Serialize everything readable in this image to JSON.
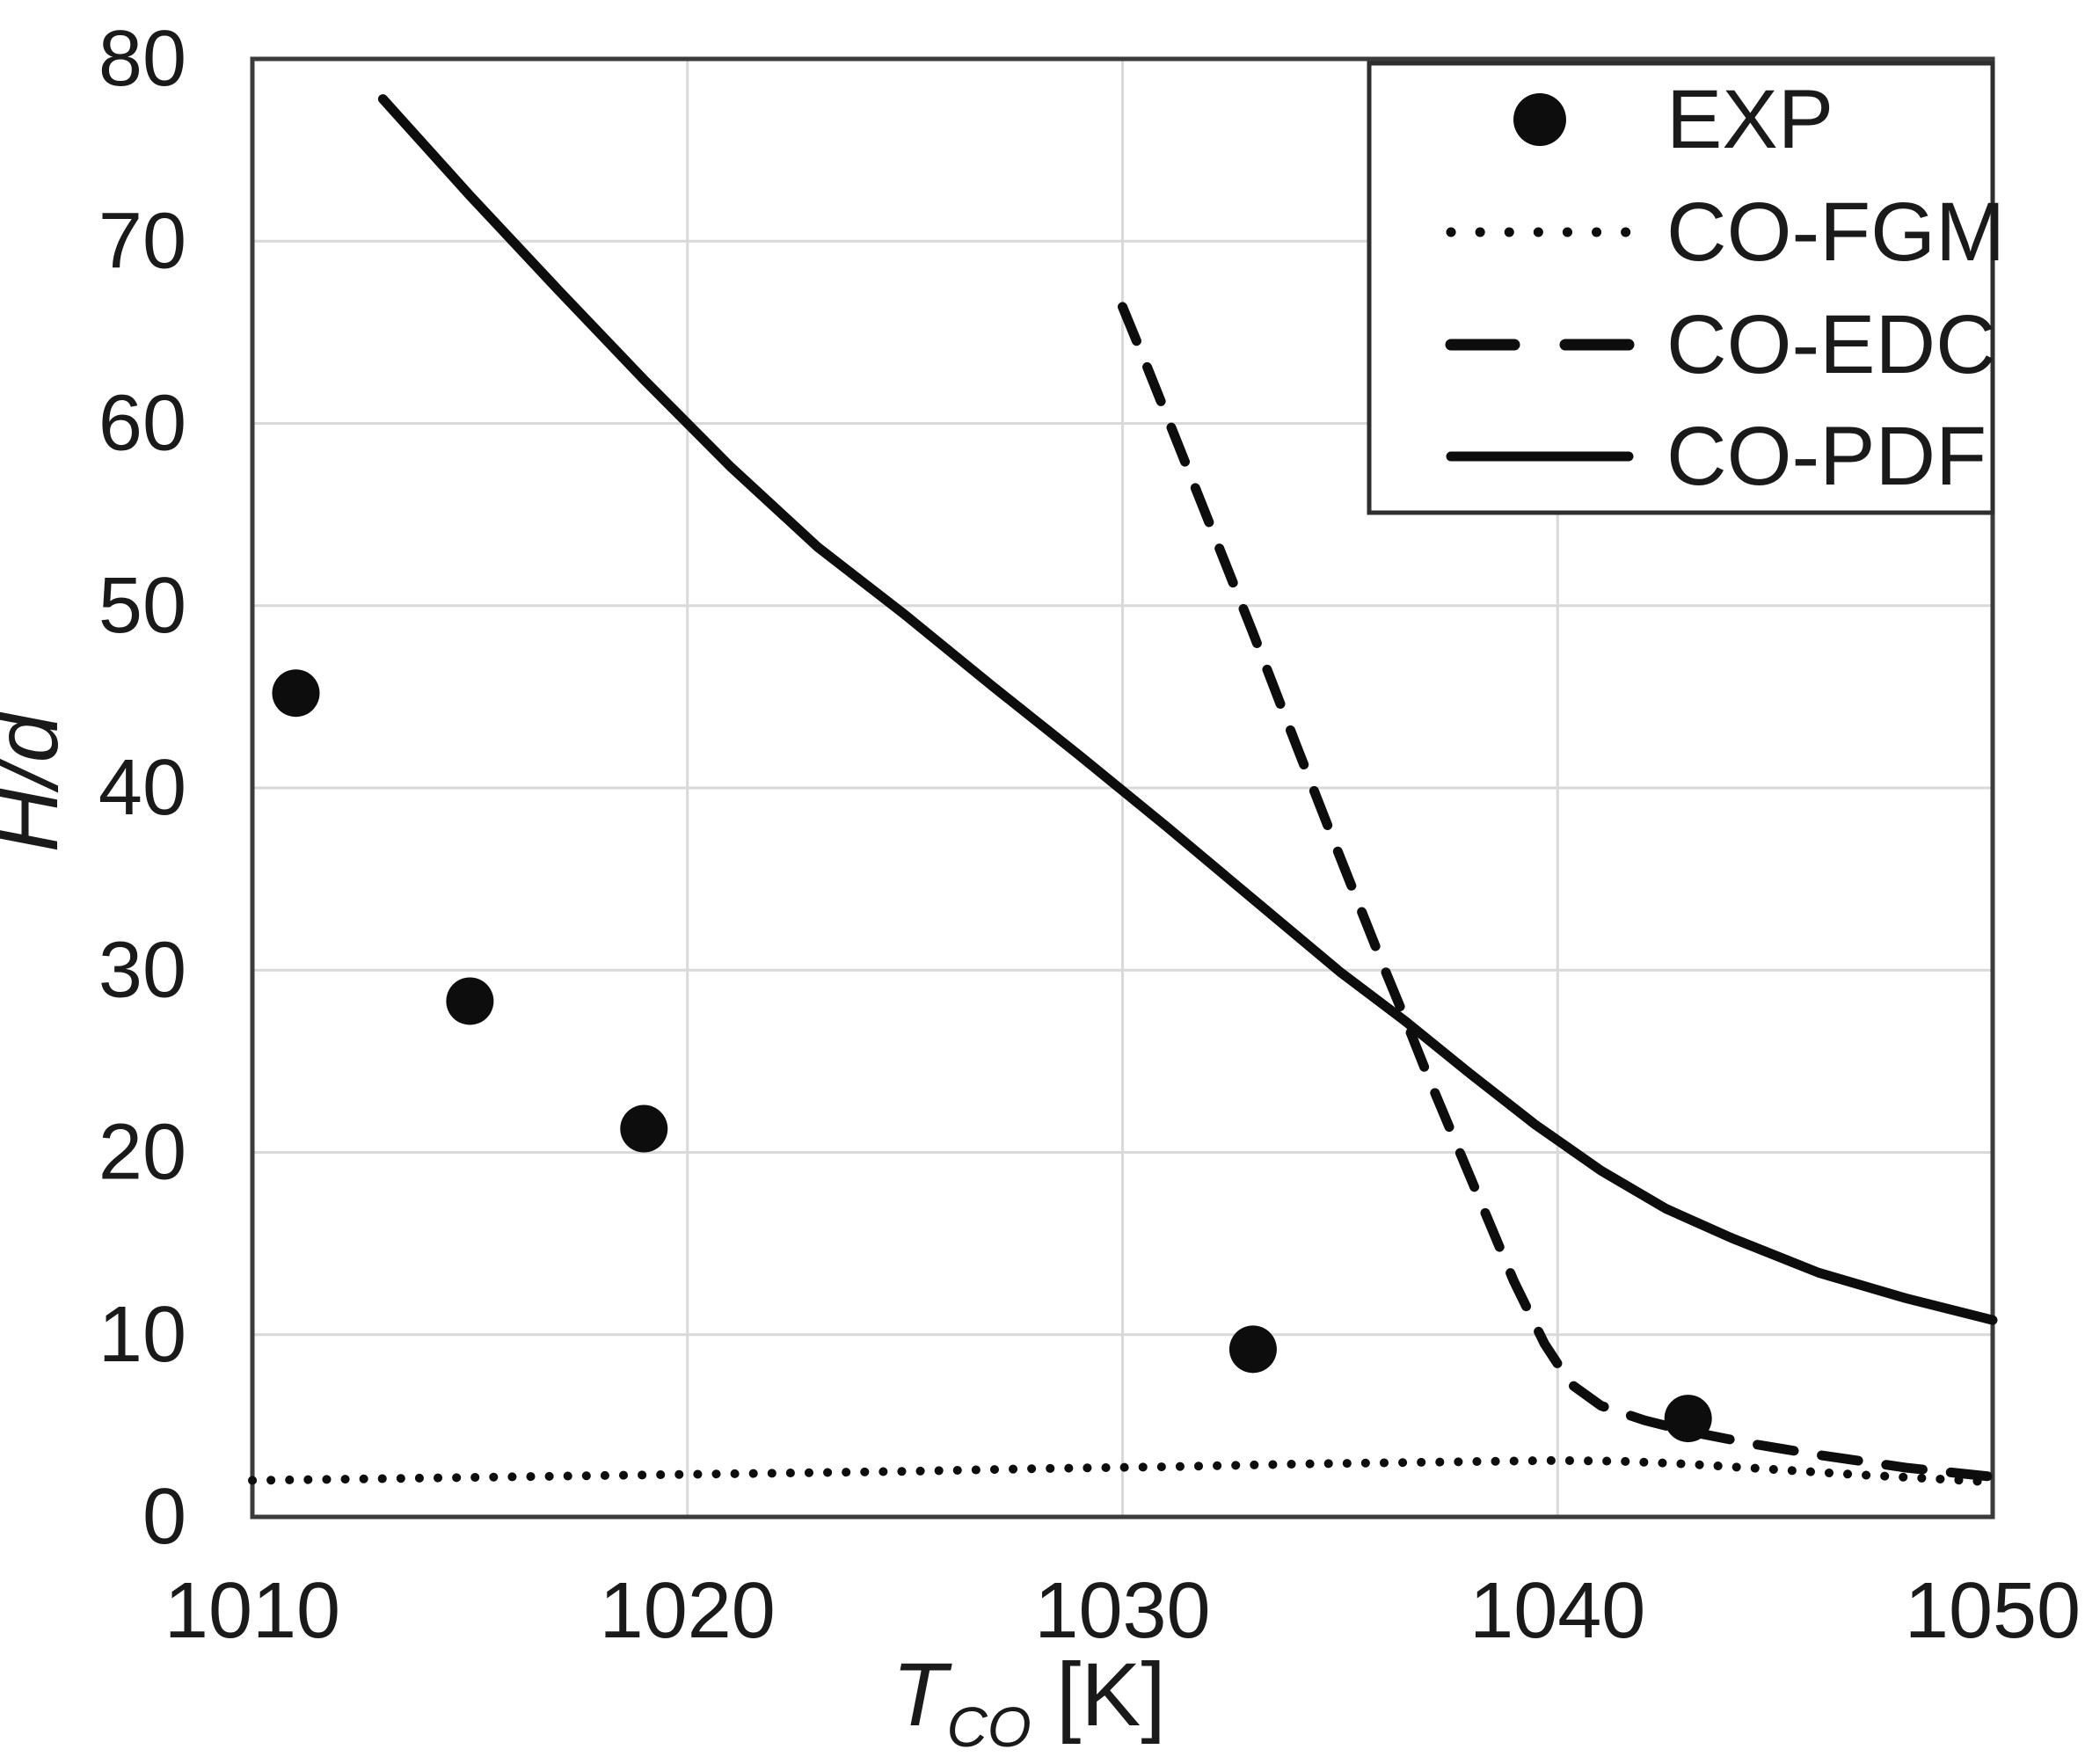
{
  "chart_data": {
    "type": "scatter",
    "title": "",
    "xlabel": {
      "symbol": "T",
      "subscript": "CO",
      "unit": " [K]"
    },
    "ylabel": "H/d",
    "xlim": [
      1010,
      1050
    ],
    "ylim": [
      0,
      80
    ],
    "x_ticks": [
      1010,
      1020,
      1030,
      1040,
      1050
    ],
    "y_ticks": [
      0,
      10,
      20,
      30,
      40,
      50,
      60,
      70,
      80
    ],
    "grid": true,
    "legend_position": "top-right",
    "series": [
      {
        "name": "EXP",
        "type": "scatter",
        "marker": "filled-circle",
        "points": [
          [
            1011,
            45.2
          ],
          [
            1015,
            28.3
          ],
          [
            1019,
            21.3
          ],
          [
            1033,
            9.2
          ],
          [
            1043,
            5.4
          ]
        ]
      },
      {
        "name": "CO-FGM",
        "type": "line",
        "style": "dotted",
        "points": [
          [
            1010,
            2.0
          ],
          [
            1013,
            2.1
          ],
          [
            1016,
            2.2
          ],
          [
            1019,
            2.3
          ],
          [
            1022,
            2.4
          ],
          [
            1025,
            2.5
          ],
          [
            1028,
            2.65
          ],
          [
            1031,
            2.75
          ],
          [
            1034,
            2.9
          ],
          [
            1037,
            3.0
          ],
          [
            1040,
            3.1
          ],
          [
            1041.5,
            3.05
          ],
          [
            1043,
            2.9
          ],
          [
            1045,
            2.6
          ],
          [
            1047,
            2.3
          ],
          [
            1049,
            2.05
          ],
          [
            1050,
            1.9
          ]
        ]
      },
      {
        "name": "CO-EDC",
        "type": "line",
        "style": "dashed",
        "points": [
          [
            1030,
            66.4
          ],
          [
            1030.5,
            63.5
          ],
          [
            1031,
            60.5
          ],
          [
            1032,
            54.5
          ],
          [
            1033,
            48.5
          ],
          [
            1034,
            42.3
          ],
          [
            1035,
            36.2
          ],
          [
            1036,
            30.2
          ],
          [
            1036.5,
            27.3
          ],
          [
            1037,
            24.3
          ],
          [
            1038,
            18.6
          ],
          [
            1039,
            12.9
          ],
          [
            1039.7,
            9.5
          ],
          [
            1040.3,
            7.3
          ],
          [
            1041,
            6.1
          ],
          [
            1042,
            5.3
          ],
          [
            1043,
            4.7
          ],
          [
            1044.5,
            4.0
          ],
          [
            1046,
            3.4
          ],
          [
            1048,
            2.7
          ],
          [
            1050,
            2.2
          ]
        ]
      },
      {
        "name": "CO-PDF",
        "type": "line",
        "style": "solid",
        "points": [
          [
            1013,
            77.8
          ],
          [
            1015,
            72.5
          ],
          [
            1017,
            67.4
          ],
          [
            1019,
            62.4
          ],
          [
            1021,
            57.6
          ],
          [
            1023,
            53.2
          ],
          [
            1025,
            49.5
          ],
          [
            1027,
            45.6
          ],
          [
            1029,
            41.8
          ],
          [
            1031,
            37.9
          ],
          [
            1033,
            33.9
          ],
          [
            1035,
            29.9
          ],
          [
            1036.5,
            27.2
          ],
          [
            1038,
            24.3
          ],
          [
            1039.5,
            21.5
          ],
          [
            1041,
            19.0
          ],
          [
            1042.5,
            16.9
          ],
          [
            1044,
            15.3
          ],
          [
            1046,
            13.4
          ],
          [
            1048,
            12.0
          ],
          [
            1050,
            10.8
          ]
        ]
      }
    ]
  },
  "legend": {
    "items": [
      {
        "label": "EXP",
        "marker": "filled-circle"
      },
      {
        "label": "CO-FGM",
        "marker": "dotted-line"
      },
      {
        "label": "CO-EDC",
        "marker": "dashed-line"
      },
      {
        "label": "CO-PDF",
        "marker": "solid-line"
      }
    ]
  },
  "colors": {
    "background": "#ffffff",
    "series": "#0d0d0d",
    "grid": "#d9d9d9",
    "axis_border": "#3b3b3b",
    "legend_border": "#2e2e2e",
    "text": "#1a1a1a"
  }
}
